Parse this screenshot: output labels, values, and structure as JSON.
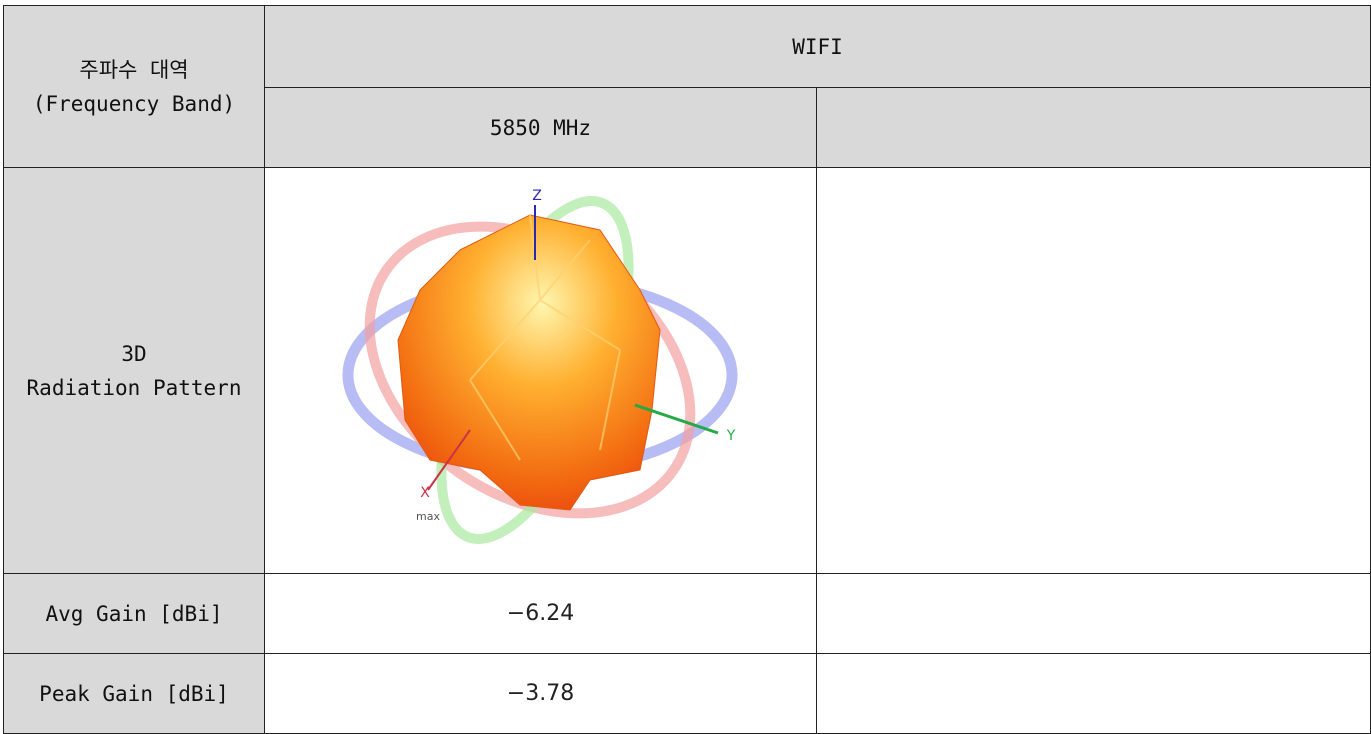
{
  "table": {
    "header": {
      "band_label": [
        "주파수 대역",
        "(Frequency Band)"
      ],
      "group": "WIFI",
      "frequency": "5850 MHz"
    },
    "rows": [
      {
        "label": [
          "3D",
          "Radiation Pattern"
        ],
        "axis_labels": {
          "z": "Z",
          "y": "Y",
          "x": "X",
          "max": "max"
        }
      },
      {
        "label": "Avg Gain [dBi]",
        "value": "−6.24"
      },
      {
        "label": "Peak Gain [dBi]",
        "value": "−3.78"
      }
    ]
  }
}
